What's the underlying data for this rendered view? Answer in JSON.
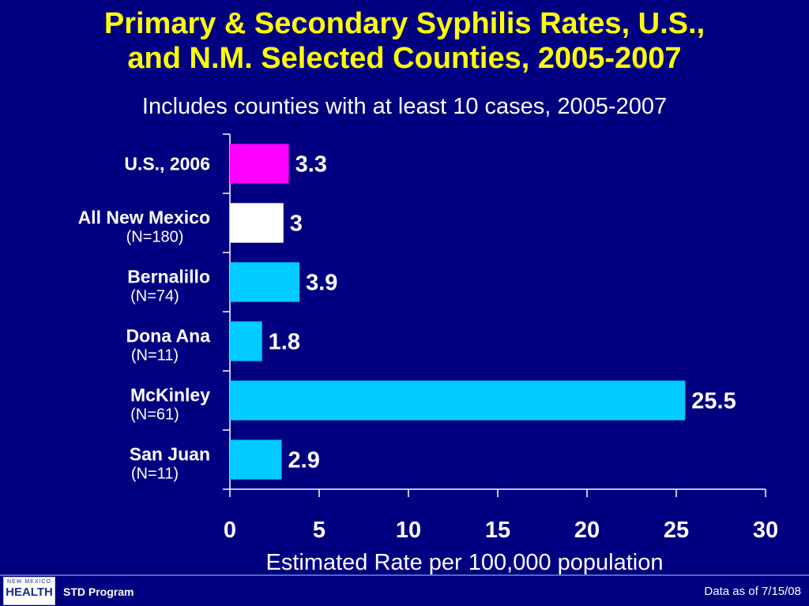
{
  "title_lines": [
    "Primary & Secondary Syphilis Rates, U.S.,",
    "and N.M. Selected Counties, 2005-2007"
  ],
  "subtitle": "Includes counties with at least 10 cases, 2005-2007",
  "chart_data": {
    "type": "bar",
    "orientation": "horizontal",
    "categories": [
      {
        "label": "U.S., 2006",
        "sublabel": ""
      },
      {
        "label": "All New Mexico",
        "sublabel": "(N=180)"
      },
      {
        "label": "Bernalillo",
        "sublabel": "(N=74)"
      },
      {
        "label": "Dona Ana",
        "sublabel": "(N=11)"
      },
      {
        "label": "McKinley",
        "sublabel": "(N=61)"
      },
      {
        "label": "San Juan",
        "sublabel": "(N=11)"
      }
    ],
    "values": [
      3.3,
      3,
      3.9,
      1.8,
      25.5,
      2.9
    ],
    "value_labels": [
      "3.3",
      "3",
      "3.9",
      "1.8",
      "25.5",
      "2.9"
    ],
    "bar_colors": [
      "#ff00ff",
      "#ffffff",
      "#00ccff",
      "#00ccff",
      "#00ccff",
      "#00ccff"
    ],
    "xlim": [
      0,
      30
    ],
    "xticks": [
      "0",
      "5",
      "10",
      "15",
      "20",
      "25",
      "30"
    ],
    "xlabel": "Estimated Rate per 100,000 population",
    "grid": false
  },
  "footer": {
    "logo_top": "NEW MEXICO",
    "logo_main": "HEALTH",
    "program": "STD Program",
    "as_of": "Data as of 7/15/08"
  }
}
